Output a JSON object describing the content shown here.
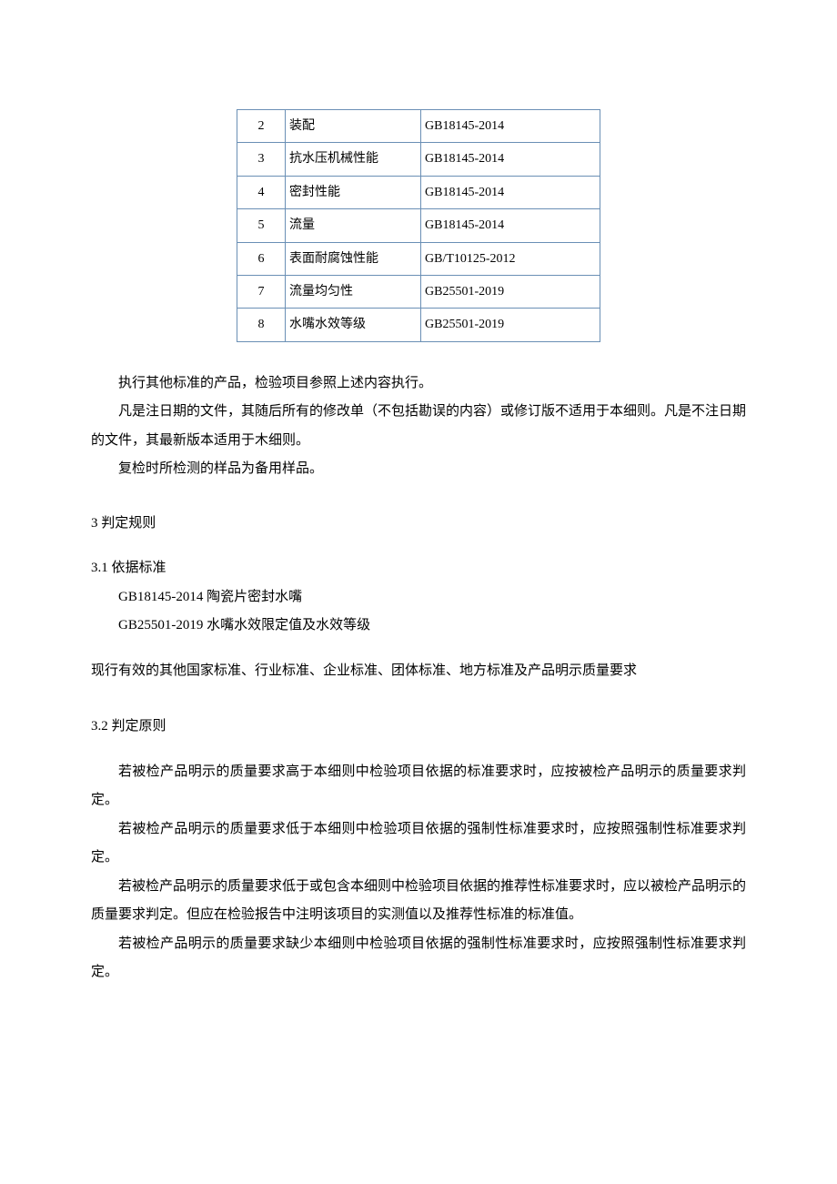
{
  "table": {
    "rows": [
      {
        "idx": "2",
        "name": "装配",
        "std": "GB18145-2014"
      },
      {
        "idx": "3",
        "name": "抗水压机械性能",
        "std": "GB18145-2014"
      },
      {
        "idx": "4",
        "name": "密封性能",
        "std": "GB18145-2014"
      },
      {
        "idx": "5",
        "name": "流量",
        "std": "GB18145-2014"
      },
      {
        "idx": "6",
        "name": "表面耐腐蚀性能",
        "std": "GB/T10125-2012"
      },
      {
        "idx": "7",
        "name": "流量均匀性",
        "std": "GB25501-2019"
      },
      {
        "idx": "8",
        "name": "水嘴水效等级",
        "std": "GB25501-2019"
      }
    ]
  },
  "para1": "执行其他标准的产品，检验项目参照上述内容执行。",
  "para2": "凡是注日期的文件，其随后所有的修改单（不包括勘误的内容）或修订版不适用于本细则。凡是不注日期的文件，其最新版本适用于木细则。",
  "para3": "复检时所检测的样品为备用样品。",
  "s3": {
    "title": "3 判定规则",
    "s31": {
      "title": "3.1   依据标准",
      "cite1": "GB18145-2014 陶瓷片密封水嘴",
      "cite2": "GB25501-2019 水嘴水效限定值及水效等级",
      "line": "现行有效的其他国家标准、行业标准、企业标准、团体标准、地方标准及产品明示质量要求"
    },
    "s32": {
      "title": "3.2   判定原则",
      "p1": "若被检产品明示的质量要求高于本细则中检验项目依据的标准要求时，应按被检产品明示的质量要求判定。",
      "p2": "若被检产品明示的质量要求低于本细则中检验项目依据的强制性标准要求时，应按照强制性标准要求判定。",
      "p3": "若被检产品明示的质量要求低于或包含本细则中检验项目依据的推荐性标准要求时，应以被检产品明示的质量要求判定。但应在检验报告中注明该项目的实测值以及推荐性标准的标准值。",
      "p4": "若被检产品明示的质量要求缺少本细则中检验项目依据的强制性标准要求时，应按照强制性标准要求判定。"
    }
  }
}
